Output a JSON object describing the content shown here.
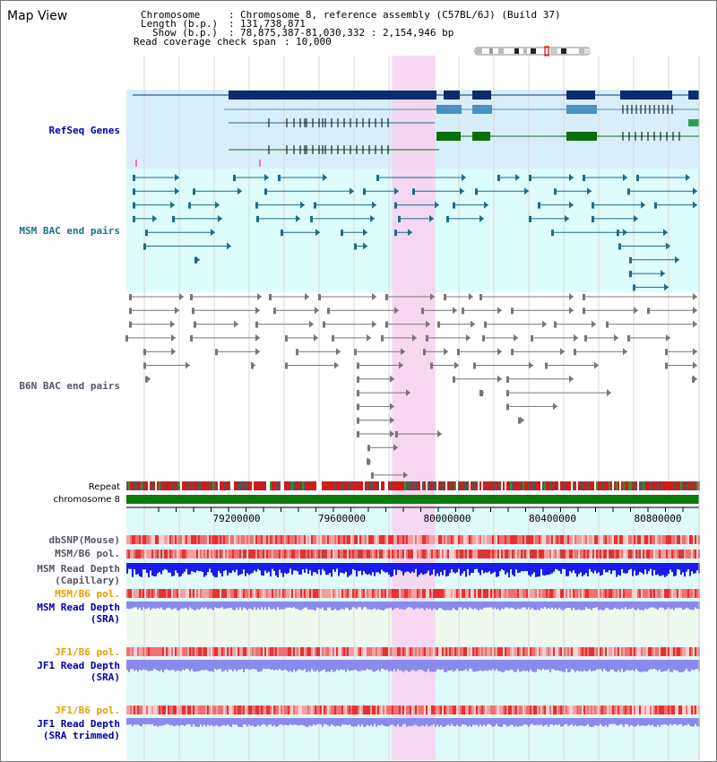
{
  "title": "Map View",
  "info": {
    "chromosome_label": "Chromosome",
    "chromosome_value": "Chromosome 8, reference assembly (C57BL/6J) (Build 37)",
    "length_label": "Length (b.p.)",
    "length_value": "131,738,871",
    "show_label": "Show (b.p.)",
    "show_value": "78,875,387-81,030,332 : 2,154,946 bp",
    "coverage_label": "Read coverage check span",
    "coverage_value": "10,000"
  },
  "tracks": {
    "refseq": "RefSeq Genes",
    "msm_bac": "MSM BAC end pairs",
    "b6n_bac": "B6N BAC end pairs",
    "repeat": "Repeat",
    "chromosome": "chromosome 8",
    "dbsnp": "dbSNP(Mouse)",
    "msm_b6_pol_1": "MSM/B6 pol.",
    "msm_read_depth_cap": "MSM Read Depth\n(Capillary)",
    "msm_b6_pol_2": "MSM/B6 pol.",
    "msm_read_depth_sra": "MSM Read Depth\n(SRA)",
    "jf1_b6_pol_1": "JF1/B6 pol.",
    "jf1_read_depth_sra": "JF1 Read Depth\n(SRA)",
    "jf1_b6_pol_2": "JF1/B6 pol.",
    "jf1_read_depth_trim": "JF1 Read Depth\n(SRA trimmed)"
  },
  "axis": {
    "ticks": [
      "79200000",
      "79600000",
      "80000000",
      "80400000",
      "80800000"
    ]
  },
  "view": {
    "start": 78875387,
    "end": 81030332,
    "highlight_start": 79875000,
    "highlight_end": 80038000
  },
  "colors": {
    "refseq_bg": "#d8eefa",
    "msm_bg": "#ddfcfc",
    "highlight": "#f6d4f0",
    "gene_dark": "#0b2d6e",
    "gene_light": "#4a90c0",
    "gene_green": "#0a6e0a",
    "bac_msm": "#1d6d86",
    "bac_b6n": "#777777",
    "chromosome_bar": "#0a7a0a",
    "depth_blue": "#1a1aee",
    "depth_light": "#8a8aee"
  }
}
